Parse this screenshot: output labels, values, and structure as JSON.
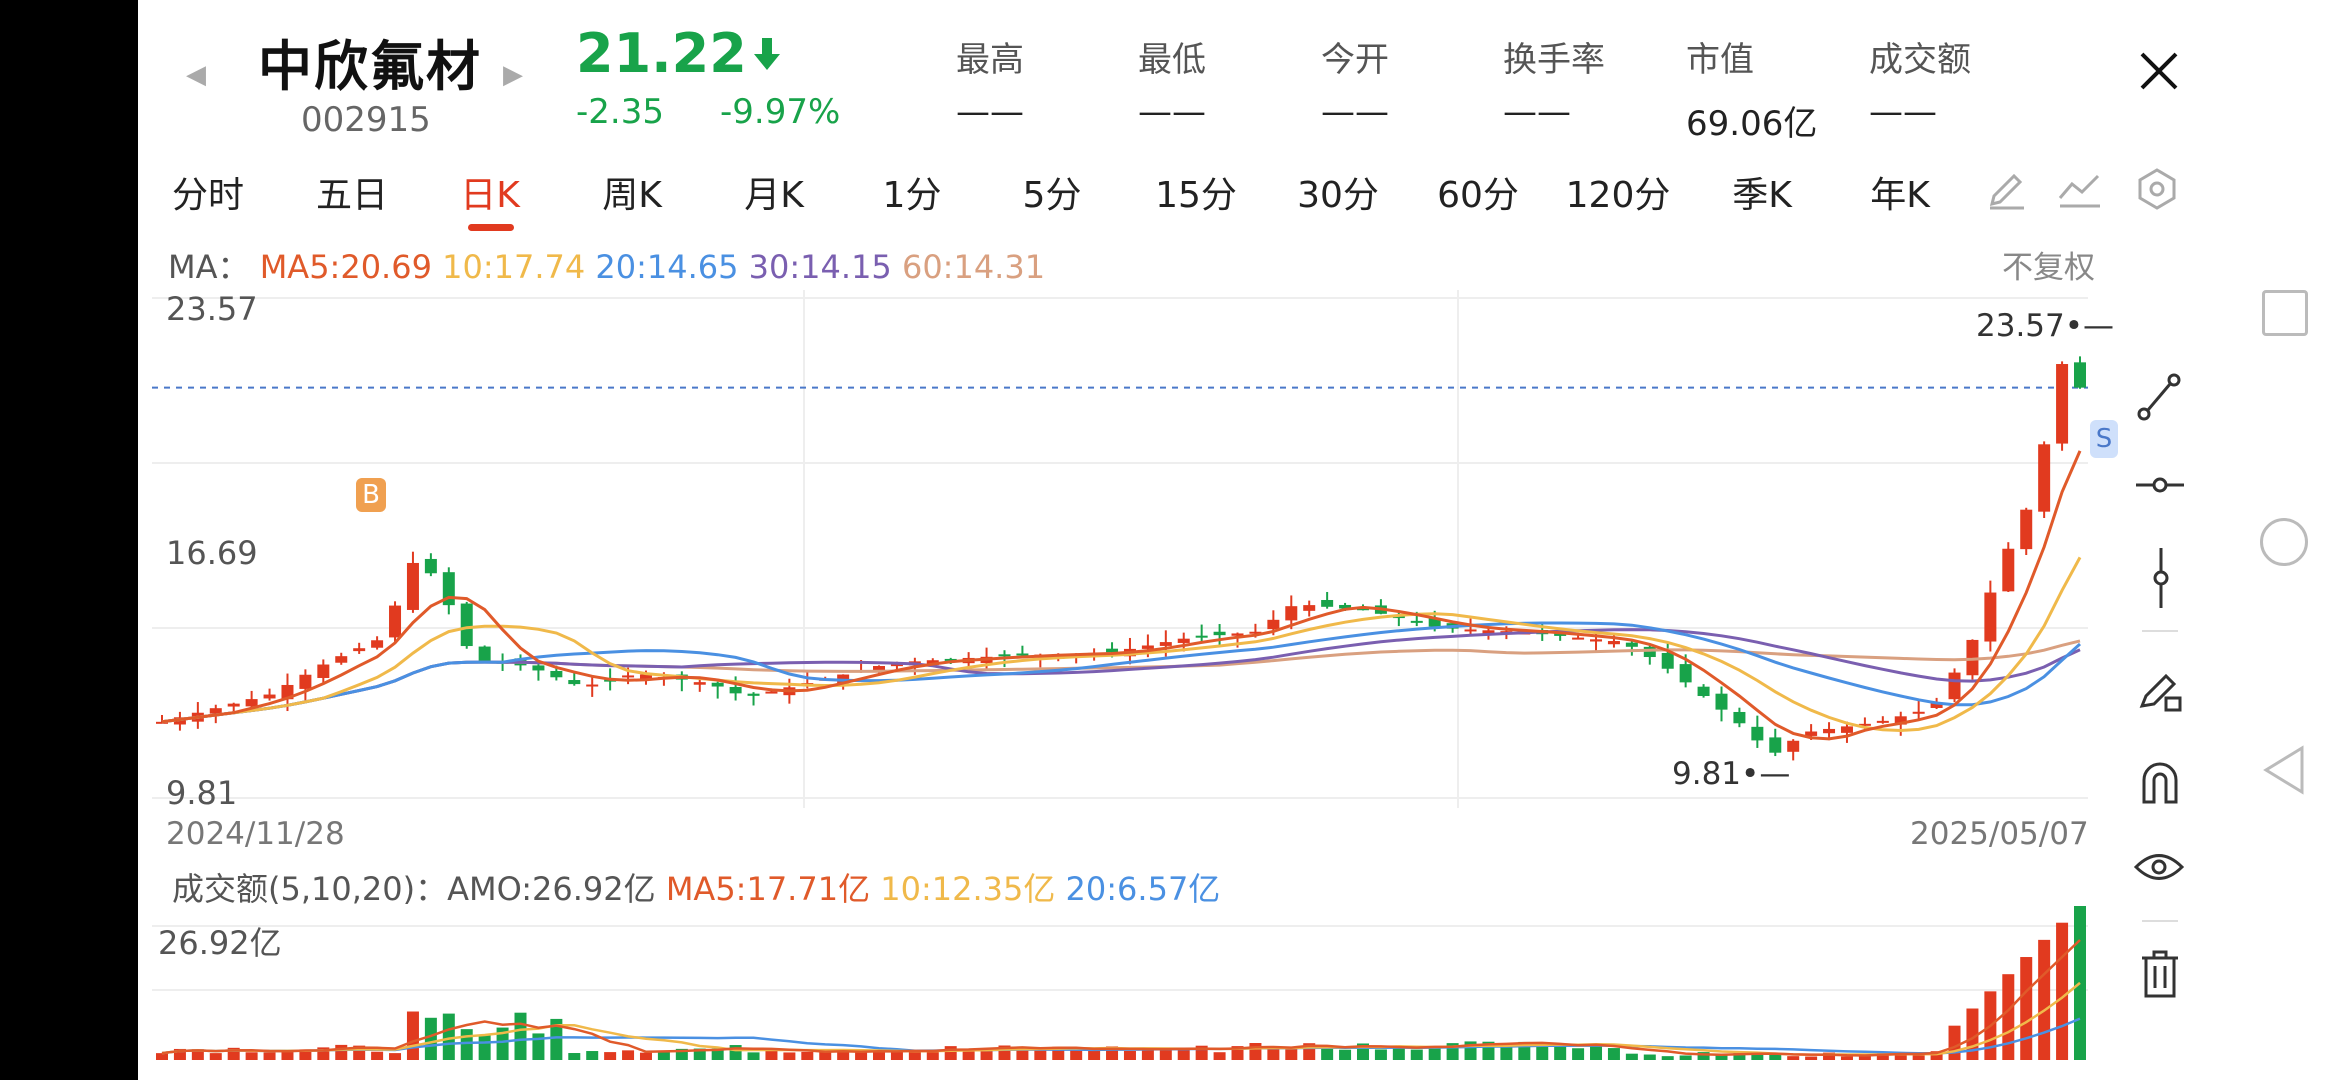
{
  "stock": {
    "name": "中欣氟材",
    "code": "002915",
    "price": "21.22",
    "change": "-2.35",
    "change_pct": "-9.97%"
  },
  "stats": [
    {
      "label": "最高",
      "value": "——"
    },
    {
      "label": "最低",
      "value": "——"
    },
    {
      "label": "今开",
      "value": "——"
    },
    {
      "label": "换手率",
      "value": "——"
    },
    {
      "label": "市值",
      "value": "69.06亿"
    },
    {
      "label": "成交额",
      "value": "——"
    }
  ],
  "tabs": [
    "分时",
    "五日",
    "日K",
    "周K",
    "月K",
    "1分",
    "5分",
    "15分",
    "30分",
    "60分",
    "120分",
    "季K",
    "年K"
  ],
  "active_tab": "日K",
  "ma_legend": {
    "prefix": "MA：",
    "ma5": "MA5:20.69",
    "ma10": "10:17.74",
    "ma20": "20:14.65",
    "ma30": "30:14.15",
    "ma60": "60:14.31"
  },
  "adjust_label": "不复权",
  "axis": {
    "top": "23.57",
    "mid": "16.69",
    "bottom": "9.81",
    "high_marker": "23.57",
    "low_marker": "9.81"
  },
  "dates": {
    "start": "2024/11/28",
    "end": "2025/05/07"
  },
  "markers": {
    "buy": "B",
    "sell": "S"
  },
  "volume_legend": {
    "prefix": "成交额(5,10,20)：AMO:26.92亿",
    "ma5": "MA5:17.71亿",
    "ma10": "10:12.35亿",
    "ma20": "20:6.57亿"
  },
  "volume_axis_top": "26.92亿",
  "colors": {
    "up": "#e13a1f",
    "down": "#18a34a",
    "ma5": "#e05a2a",
    "ma10": "#f0b94a",
    "ma20": "#4a90e2",
    "ma30": "#7a5fb0",
    "ma60": "#d9a080",
    "current_price_line": "#4a78c9"
  },
  "icons": [
    "close-icon",
    "pencil-icon",
    "trend-icon",
    "hexagon-icon",
    "line-tool-icon",
    "horizontal-line-icon",
    "vertical-ray-icon",
    "draw-eraser-icon",
    "magnet-icon",
    "eye-icon",
    "trash-icon",
    "square-icon",
    "circle-icon",
    "back-triangle-icon"
  ]
}
